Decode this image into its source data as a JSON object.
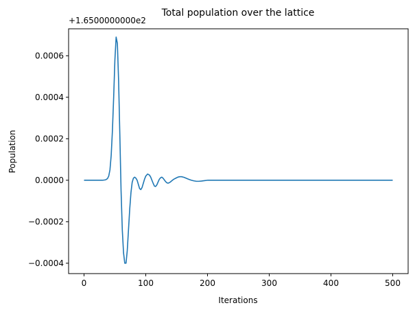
{
  "chart_data": {
    "type": "line",
    "title": "Total population over the lattice",
    "xlabel": "Iterations",
    "ylabel": "Population",
    "offset_label": "+1.6500000000e2",
    "xlim": [
      -25,
      525
    ],
    "ylim": [
      -0.00045,
      0.00073
    ],
    "xticks": [
      0,
      100,
      200,
      300,
      400,
      500
    ],
    "xtick_labels": [
      "0",
      "100",
      "200",
      "300",
      "400",
      "500"
    ],
    "yticks": [
      -0.0004,
      -0.0002,
      0.0,
      0.0002,
      0.0004,
      0.0006
    ],
    "ytick_labels": [
      "−0.0004",
      "−0.0002",
      "0.0000",
      "0.0002",
      "0.0004",
      "0.0006"
    ],
    "grid": false,
    "series": [
      {
        "color": "#1f77b4",
        "x": [
          0,
          30,
          35,
          38,
          40,
          42,
          44,
          46,
          48,
          50,
          52,
          54,
          56,
          58,
          60,
          62,
          64,
          66,
          68,
          70,
          72,
          74,
          76,
          78,
          80,
          82,
          84,
          86,
          88,
          90,
          92,
          94,
          96,
          98,
          100,
          103,
          106,
          108,
          110,
          112,
          114,
          116,
          118,
          120,
          122,
          124,
          126,
          128,
          130,
          132,
          134,
          136,
          138,
          140,
          142,
          144,
          146,
          148,
          150,
          152,
          155,
          158,
          162,
          166,
          170,
          174,
          178,
          182,
          186,
          190,
          195,
          200,
          205,
          210,
          215,
          220,
          230,
          250,
          300,
          350,
          400,
          450,
          500
        ],
        "y": [
          0.0,
          0.0,
          2e-06,
          8e-06,
          2e-05,
          5e-05,
          0.00012,
          0.00024,
          0.0004,
          0.00058,
          0.00069,
          0.00066,
          0.00048,
          0.00022,
          -5e-05,
          -0.00024,
          -0.00035,
          -0.0004,
          -0.0004,
          -0.00034,
          -0.00024,
          -0.00014,
          -6e-05,
          -1e-05,
          1e-05,
          1.5e-05,
          1e-05,
          0.0,
          -2e-05,
          -4e-05,
          -4.5e-05,
          -3.5e-05,
          -1.5e-05,
          5e-06,
          2e-05,
          3e-05,
          2.5e-05,
          1.5e-05,
          0.0,
          -1.5e-05,
          -2.8e-05,
          -3e-05,
          -2.2e-05,
          -8e-06,
          5e-06,
          1.2e-05,
          1.5e-05,
          1e-05,
          2e-06,
          -6e-06,
          -1.2e-05,
          -1.4e-05,
          -1.2e-05,
          -8e-06,
          -3e-06,
          2e-06,
          6e-06,
          9e-06,
          1.2e-05,
          1.5e-05,
          1.7e-05,
          1.7e-05,
          1.4e-05,
          9e-06,
          4e-06,
          0.0,
          -3e-06,
          -5e-06,
          -5e-06,
          -4e-06,
          -2e-06,
          0.0,
          0.0,
          0.0,
          0.0,
          0.0,
          0.0,
          0.0,
          0.0,
          0.0,
          0.0,
          0.0,
          0.0
        ]
      }
    ]
  }
}
